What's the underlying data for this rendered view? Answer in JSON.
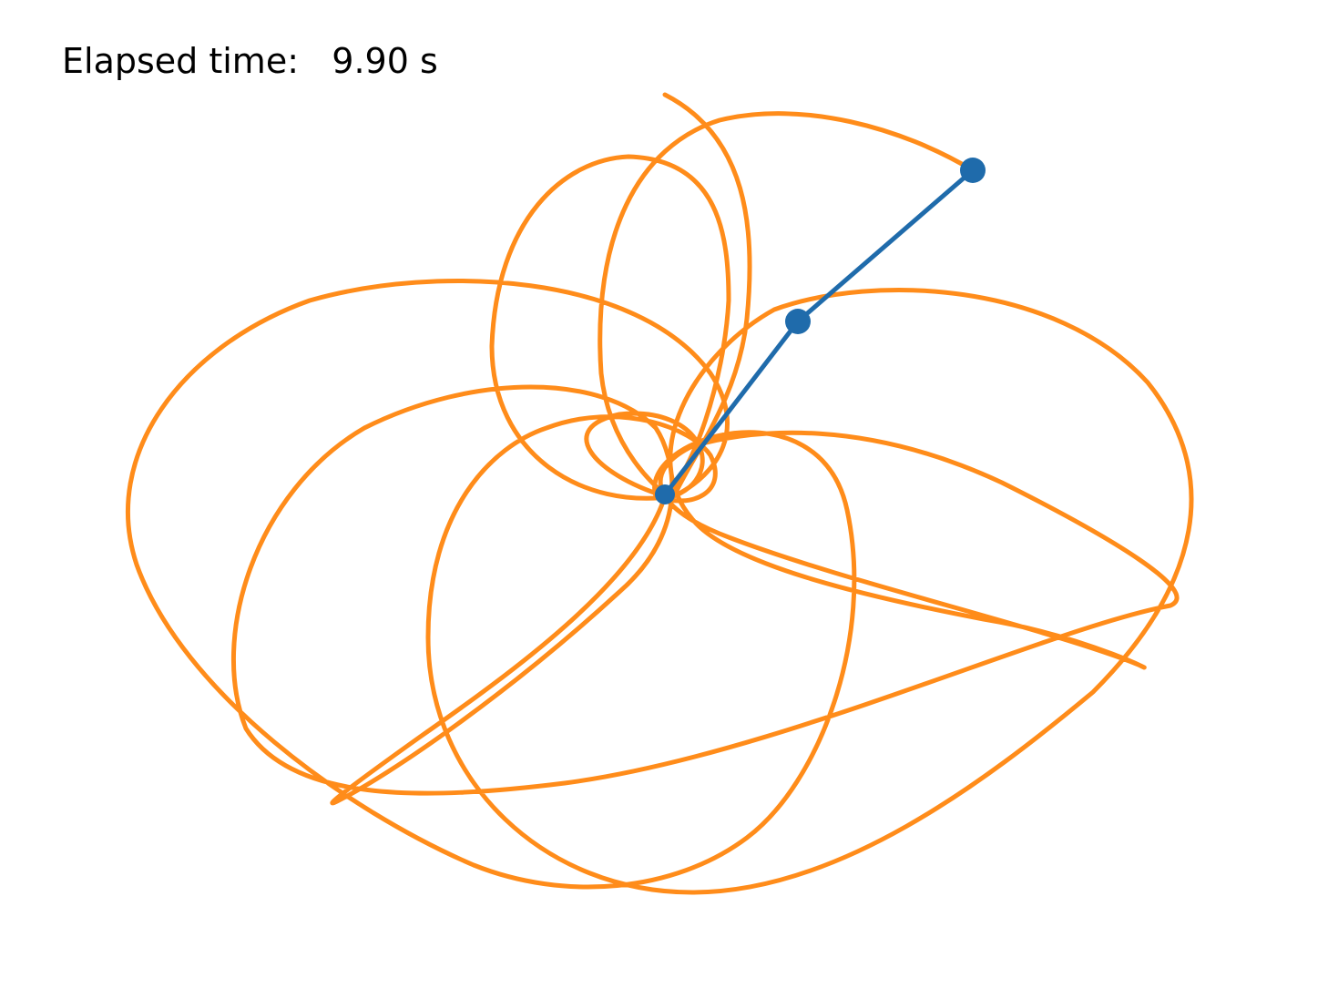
{
  "elapsed": {
    "label": "Elapsed time:",
    "value": "9.90",
    "unit": "s"
  },
  "colors": {
    "background": "#ffffff",
    "trace": "#ff8c1a",
    "pendulum": "#1f6bab",
    "text": "#000000"
  }
}
